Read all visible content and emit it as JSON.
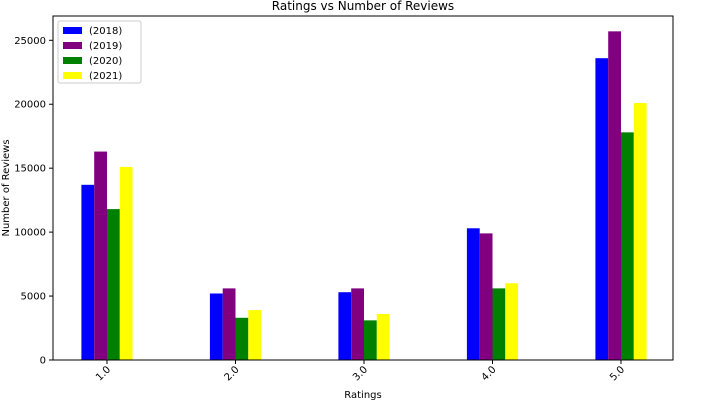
{
  "chart_data": {
    "type": "bar",
    "title": "Ratings vs Number of Reviews",
    "xlabel": "Ratings",
    "ylabel": "Number of Reviews",
    "categories": [
      "1.0",
      "2.0",
      "3.0",
      "4.0",
      "5.0"
    ],
    "y_ticks": [
      0,
      5000,
      10000,
      15000,
      20000,
      25000
    ],
    "ylim": [
      0,
      26900
    ],
    "grid": false,
    "legend_position": "top-left",
    "series": [
      {
        "name": "(2018)",
        "color": "#0000ff",
        "values": [
          13700,
          5200,
          5300,
          10300,
          23600
        ]
      },
      {
        "name": "(2019)",
        "color": "#800080",
        "values": [
          16300,
          5600,
          5600,
          9900,
          25700
        ]
      },
      {
        "name": "(2020)",
        "color": "#008000",
        "values": [
          11800,
          3300,
          3100,
          5600,
          17800
        ]
      },
      {
        "name": "(2021)",
        "color": "#ffff00",
        "values": [
          15100,
          3900,
          3600,
          6000,
          20100
        ]
      }
    ]
  }
}
